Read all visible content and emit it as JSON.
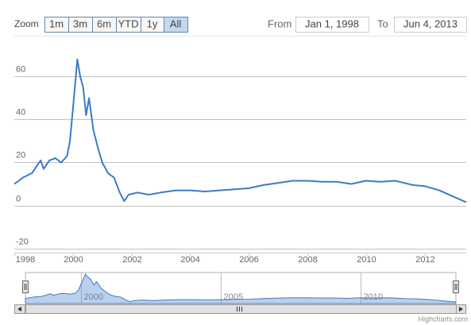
{
  "range_selector": {
    "label": "Zoom",
    "buttons": [
      "1m",
      "3m",
      "6m",
      "YTD",
      "1y",
      "All"
    ],
    "selected": 5,
    "from_label": "From",
    "from_value": "Jan 1, 1998",
    "to_label": "To",
    "to_value": "Jun 4, 2013"
  },
  "chart_data": {
    "type": "line",
    "grid": true,
    "xlim": [
      1998,
      2013.42
    ],
    "xticks": [
      1998,
      2000,
      2002,
      2004,
      2006,
      2008,
      2010,
      2012
    ],
    "ylim": [
      -22,
      79
    ],
    "yticks": [
      -20,
      0,
      20,
      40,
      60
    ],
    "series": [
      {
        "color": "#3d7ac7",
        "x": [
          1998.0,
          1998.3,
          1998.6,
          1998.9,
          1999.0,
          1999.2,
          1999.4,
          1999.6,
          1999.8,
          1999.9,
          2000.0,
          2000.1,
          2000.15,
          2000.25,
          2000.35,
          2000.45,
          2000.55,
          2000.7,
          2000.85,
          2001.0,
          2001.2,
          2001.4,
          2001.6,
          2001.75,
          2001.9,
          2002.2,
          2002.6,
          2003.0,
          2003.5,
          2004.0,
          2004.5,
          2005.0,
          2005.5,
          2006.0,
          2006.5,
          2007.0,
          2007.5,
          2008.0,
          2008.5,
          2009.0,
          2009.5,
          2010.0,
          2010.5,
          2011.0,
          2011.3,
          2011.6,
          2012.0,
          2012.5,
          2013.0,
          2013.42
        ],
        "values": [
          10,
          13,
          15,
          21,
          17,
          21,
          22,
          20,
          23,
          30,
          45,
          60,
          68,
          60,
          55,
          42,
          50,
          35,
          27,
          20,
          15,
          13,
          6,
          2,
          5,
          6,
          5,
          6,
          7,
          7,
          6.5,
          7,
          7.5,
          8,
          9.5,
          10.5,
          11.5,
          11.5,
          11,
          11,
          10,
          11.5,
          11,
          11.5,
          10.5,
          9.5,
          9,
          7,
          4,
          1.5
        ]
      }
    ],
    "navigator": {
      "xticks": [
        2000,
        2005,
        2010
      ]
    }
  },
  "credits": "Highcharts.com"
}
